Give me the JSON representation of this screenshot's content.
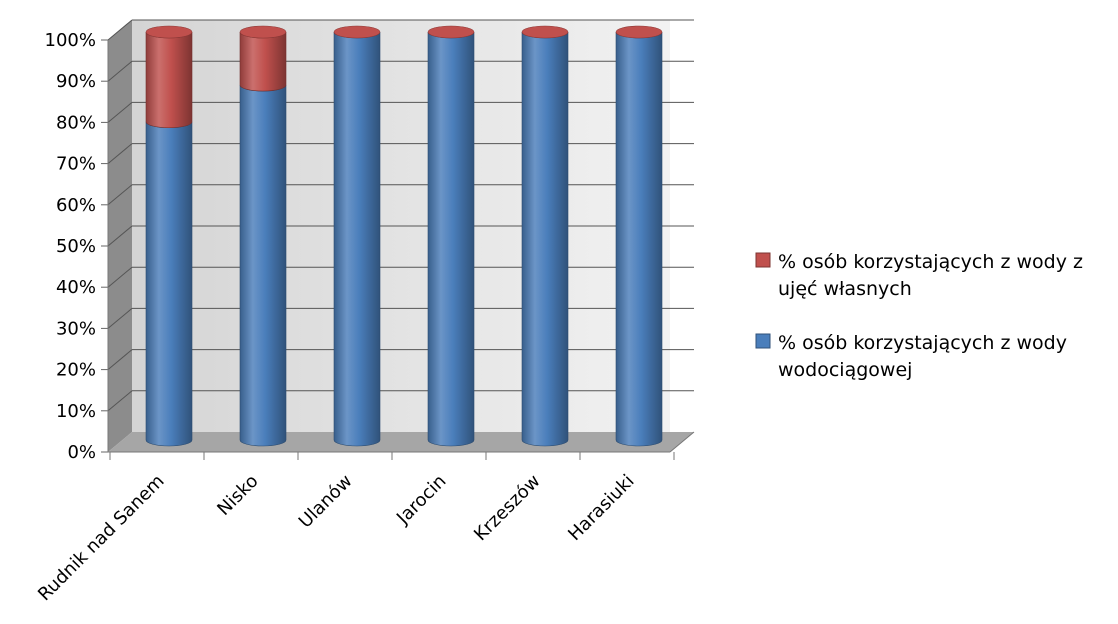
{
  "chart_data": {
    "type": "bar",
    "stacked": true,
    "view": "3d-cylinder",
    "categories": [
      "Rudnik nad Sanem",
      "Nisko",
      "Ulanów",
      "Jarocin",
      "Krzeszów",
      "Harasiuki"
    ],
    "series": [
      {
        "name": "% osób korzystających z wody wodociągowej",
        "color": "#4a7ebb",
        "values": [
          78,
          87,
          100,
          100,
          100,
          100
        ]
      },
      {
        "name": "% osób korzystających z wody z ujęć własnych",
        "color": "#c0504d",
        "values": [
          22,
          13,
          0,
          0,
          0,
          0
        ]
      }
    ],
    "y_ticks": [
      "0%",
      "10%",
      "20%",
      "30%",
      "40%",
      "50%",
      "60%",
      "70%",
      "80%",
      "90%",
      "100%"
    ],
    "ylim": [
      0,
      100
    ],
    "grid": true,
    "legend": {
      "position": "right",
      "entries": [
        {
          "series": 1,
          "lines": [
            "% osób korzystających z wody z",
            "ujęć własnych"
          ]
        },
        {
          "series": 0,
          "lines": [
            "% osób korzystających z wody",
            "wodociągowej"
          ]
        }
      ]
    },
    "title": "",
    "xlabel": "",
    "ylabel": ""
  }
}
